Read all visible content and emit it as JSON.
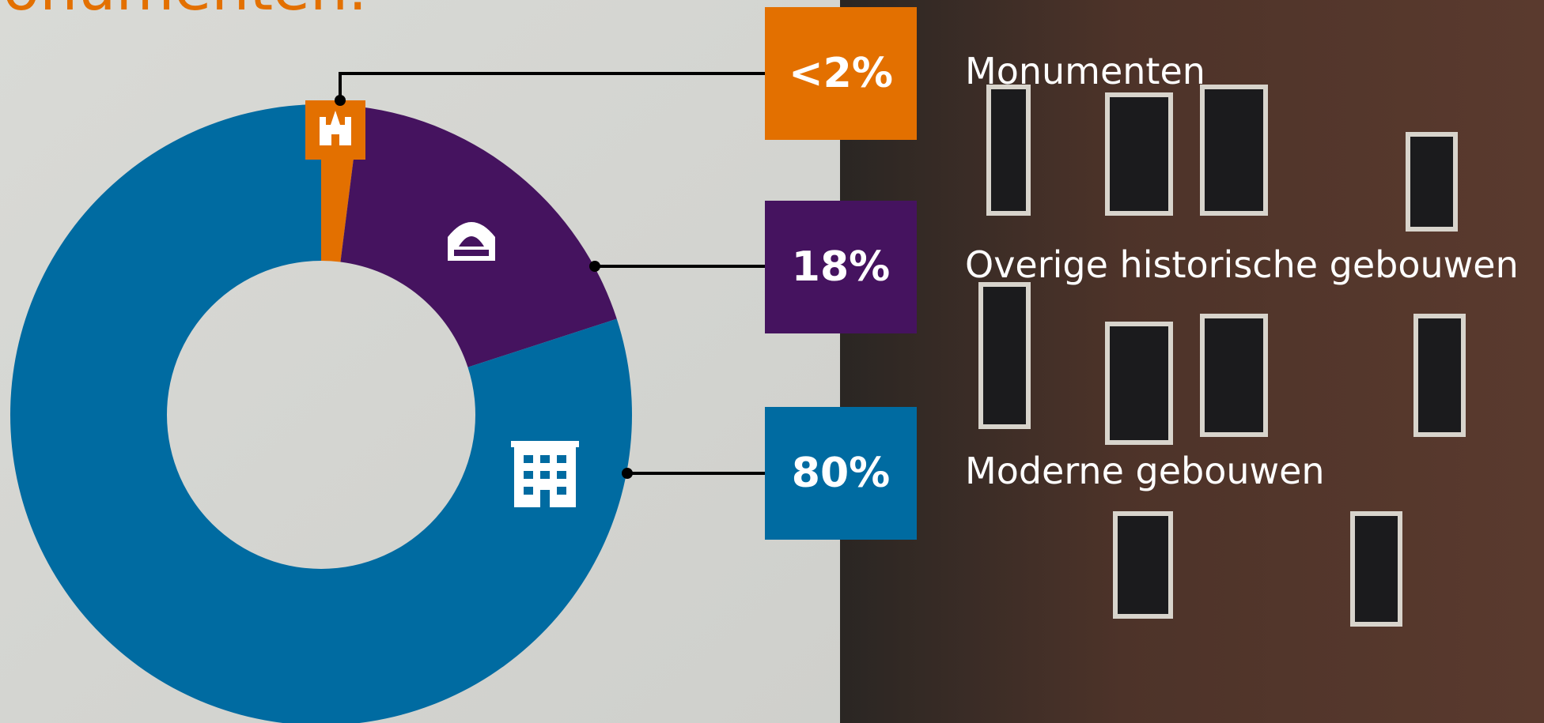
{
  "chart_data": {
    "type": "donut",
    "title": "Monumenten.",
    "categories": [
      "Monumenten",
      "Overige historische gebouwen",
      "Moderne gebouwen"
    ],
    "values": [
      2,
      18,
      80
    ],
    "value_labels": [
      "<2%",
      "18%",
      "80%"
    ],
    "colors": [
      "#e37000",
      "#45135f",
      "#006ba1"
    ]
  }
}
